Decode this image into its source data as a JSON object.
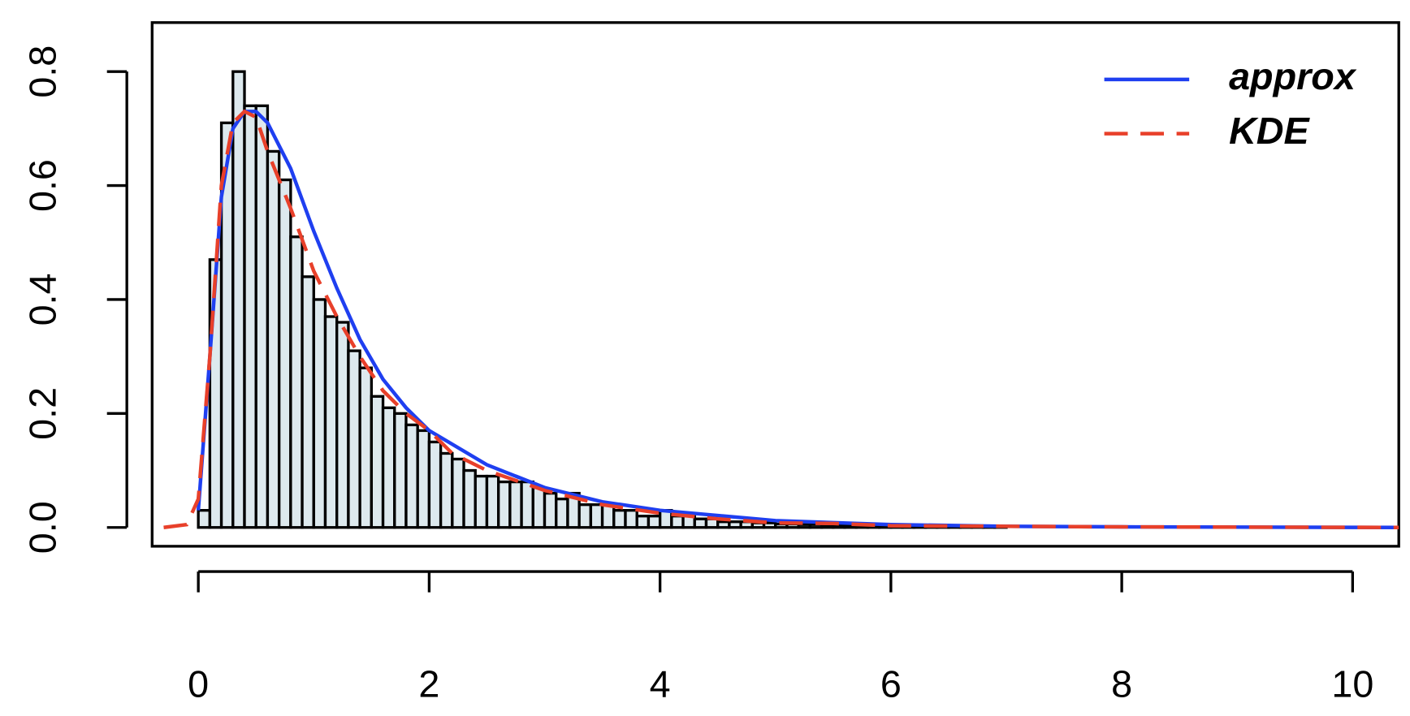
{
  "chart_data": {
    "type": "histogram",
    "bins": [
      0,
      0.1,
      0.2,
      0.3,
      0.4,
      0.5,
      0.6,
      0.7,
      0.8,
      0.9,
      1,
      1.1,
      1.2,
      1.3,
      1.4,
      1.5,
      1.6,
      1.7,
      1.8,
      1.9,
      2,
      2.1,
      2.2,
      2.3,
      2.4,
      2.5,
      2.6,
      2.7,
      2.8,
      2.9,
      3,
      3.1,
      3.2,
      3.3,
      3.4,
      3.5,
      3.6,
      3.7,
      3.8,
      3.9,
      4,
      4.1,
      4.2,
      4.3,
      4.4,
      4.5,
      4.6,
      4.7,
      4.8,
      4.9,
      5,
      5.1,
      5.2,
      5.3,
      5.4,
      5.5,
      5.6,
      5.7,
      5.8,
      5.9,
      6,
      6.1,
      6.2,
      6.3,
      6.4,
      6.5,
      6.6,
      6.7,
      6.8,
      6.9,
      7
    ],
    "values": [
      0.03,
      0.47,
      0.71,
      0.8,
      0.74,
      0.74,
      0.66,
      0.61,
      0.51,
      0.44,
      0.4,
      0.37,
      0.36,
      0.31,
      0.28,
      0.23,
      0.21,
      0.2,
      0.18,
      0.17,
      0.15,
      0.13,
      0.12,
      0.1,
      0.09,
      0.09,
      0.08,
      0.08,
      0.08,
      0.07,
      0.06,
      0.05,
      0.06,
      0.04,
      0.04,
      0.04,
      0.03,
      0.03,
      0.02,
      0.02,
      0.03,
      0.02,
      0.02,
      0.015,
      0.015,
      0.01,
      0.01,
      0.01,
      0.008,
      0.008,
      0.006,
      0.006,
      0.005,
      0.005,
      0.004,
      0.004,
      0.004,
      0.003,
      0.003,
      0.003,
      0.002,
      0.002,
      0.002,
      0.002,
      0.002,
      0.002,
      0.001,
      0.001,
      0.001,
      0.001
    ],
    "color": "#dde9ee",
    "series": [
      {
        "name": "approx",
        "color": "#1f3ff0",
        "dash": false,
        "x": [
          0,
          0.1,
          0.2,
          0.3,
          0.4,
          0.5,
          0.6,
          0.8,
          1,
          1.2,
          1.4,
          1.6,
          1.8,
          2,
          2.5,
          3,
          3.5,
          4,
          5,
          6,
          7,
          8,
          10.4
        ],
        "values": [
          0.03,
          0.3,
          0.58,
          0.7,
          0.73,
          0.73,
          0.71,
          0.63,
          0.52,
          0.42,
          0.33,
          0.26,
          0.21,
          0.17,
          0.11,
          0.07,
          0.045,
          0.03,
          0.012,
          0.005,
          0.002,
          0.001,
          0
        ]
      },
      {
        "name": "KDE",
        "color": "#e8402a",
        "dash": true,
        "x": [
          -0.3,
          -0.1,
          0,
          0.1,
          0.2,
          0.3,
          0.4,
          0.5,
          0.6,
          0.8,
          1,
          1.2,
          1.4,
          1.6,
          1.8,
          2,
          2.2,
          2.5,
          3,
          3.5,
          4,
          4.5,
          5,
          5.5,
          6,
          7,
          8,
          10.4
        ],
        "values": [
          0,
          0.005,
          0.05,
          0.3,
          0.6,
          0.71,
          0.73,
          0.72,
          0.66,
          0.56,
          0.45,
          0.37,
          0.3,
          0.24,
          0.2,
          0.17,
          0.13,
          0.1,
          0.065,
          0.04,
          0.025,
          0.015,
          0.008,
          0.007,
          0.003,
          0.002,
          0.001,
          0
        ]
      }
    ],
    "xlim": [
      -0.4,
      10.4
    ],
    "xticks": [
      0,
      2,
      4,
      6,
      8,
      10
    ],
    "ylim": [
      -0.033,
      0.886
    ],
    "yticks": [
      {
        "value": 0,
        "label": "0.0"
      },
      0.2,
      0.4,
      0.6,
      0.8
    ],
    "legend": "topright"
  }
}
